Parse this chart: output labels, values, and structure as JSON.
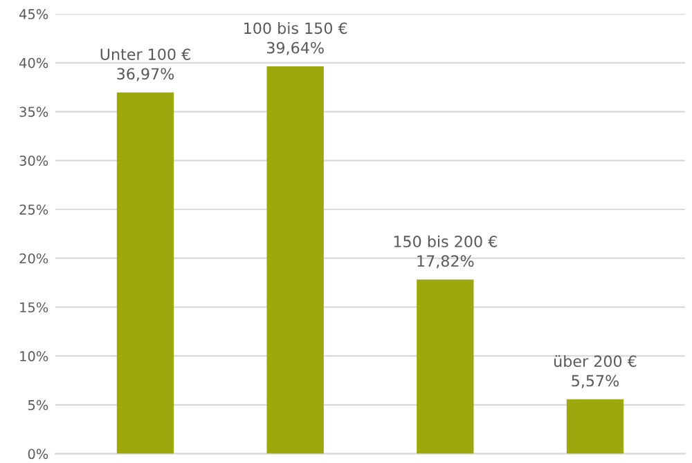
{
  "chart_data": {
    "type": "bar",
    "categories": [
      "Unter 100 €",
      "100 bis 150 €",
      "150 bis 200 €",
      "über 200 €"
    ],
    "values": [
      36.97,
      39.64,
      17.82,
      5.57
    ],
    "value_labels": [
      "36,97%",
      "39,64%",
      "17,82%",
      "5,57%"
    ],
    "color": "#9ca80d",
    "ylim": [
      0,
      45
    ],
    "yticks": [
      {
        "value": 0,
        "label": "0%"
      },
      {
        "value": 5,
        "label": "5%"
      },
      {
        "value": 10,
        "label": "10%"
      },
      {
        "value": 15,
        "label": "15%"
      },
      {
        "value": 20,
        "label": "20%"
      },
      {
        "value": 25,
        "label": "25%"
      },
      {
        "value": 30,
        "label": "30%"
      },
      {
        "value": 35,
        "label": "35%"
      },
      {
        "value": 40,
        "label": "40%"
      },
      {
        "value": 45,
        "label": "45%"
      }
    ],
    "grid": "y",
    "tick_labels": "y"
  }
}
